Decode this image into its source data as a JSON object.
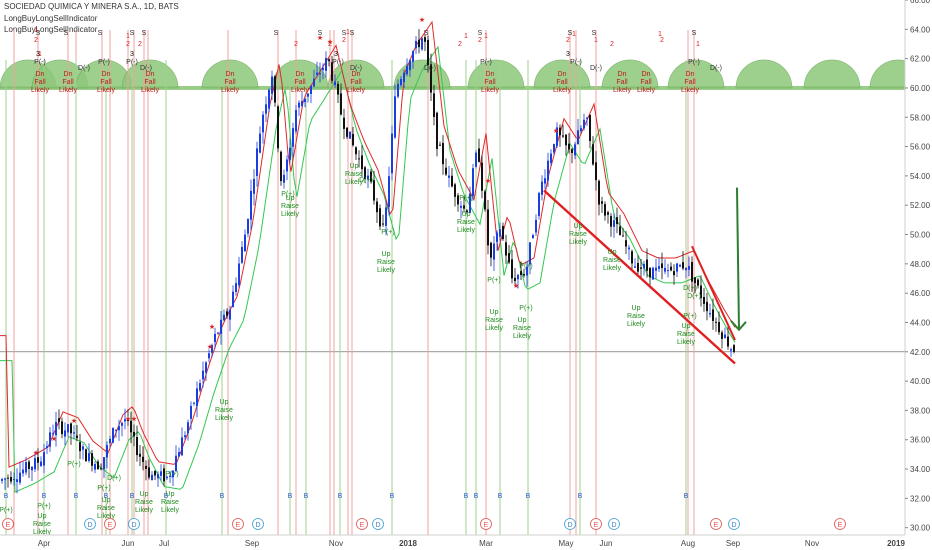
{
  "header": {
    "symbol_line": "SOCIEDAD QUIMICA Y MINERA S.A., 1D, BATS",
    "indicator_1": "LongBuyLongSellIndicator",
    "indicator_2": "LongBuyLongSellIndicator"
  },
  "chart_data": {
    "type": "candlestick",
    "y_axis": {
      "ticks": [
        30,
        32,
        34,
        36,
        38,
        40,
        42,
        44,
        46,
        48,
        50,
        52,
        54,
        56,
        58,
        60,
        62,
        64,
        66
      ],
      "range": [
        29.5,
        66
      ],
      "position": "right"
    },
    "x_axis": {
      "ticks": [
        "Apr",
        "Jun",
        "Jul",
        "Sep",
        "Nov",
        "2018",
        "Mar",
        "May",
        "Jun",
        "Aug",
        "Sep",
        "Nov",
        "2019"
      ]
    },
    "horizontal_line": {
      "label": "42.00",
      "value": 42.0
    },
    "cycle_band": {
      "from": 60,
      "to": 62.8
    },
    "trendlines": [
      {
        "color": "#e02020",
        "from": [
          "May 2018",
          53.0
        ],
        "to": [
          "Sep 2018",
          41.2
        ]
      },
      {
        "color": "#e02020",
        "from": [
          "Aug 2018",
          49.2
        ],
        "to": [
          "Sep 2018",
          42.8
        ]
      }
    ],
    "arrow": {
      "color": "#2e7d32",
      "from": [
        "Sep 2018",
        53.2
      ],
      "to": [
        "Sep 2018",
        43.5
      ]
    },
    "signal_labels": {
      "up": [
        "Up",
        "Raise",
        "Likely"
      ],
      "down": [
        "Dn",
        "Fall",
        "Likely"
      ],
      "p_plus": "P(+)",
      "p_minus": "P(-)",
      "d_minus": "D(-)",
      "d_plus": "D(+)",
      "s": "S",
      "b": "B",
      "e": "E",
      "d": "D",
      "n1": "1",
      "n2": "2",
      "n3": "3"
    },
    "colors": {
      "up_candle": "#1a3ee0",
      "down_candle": "#111111",
      "green_ma": "#32c850",
      "red_ma": "#e02828",
      "band": "#8ec87a",
      "s_line": "#f2a0a0",
      "b_line": "#9fd08e"
    }
  }
}
